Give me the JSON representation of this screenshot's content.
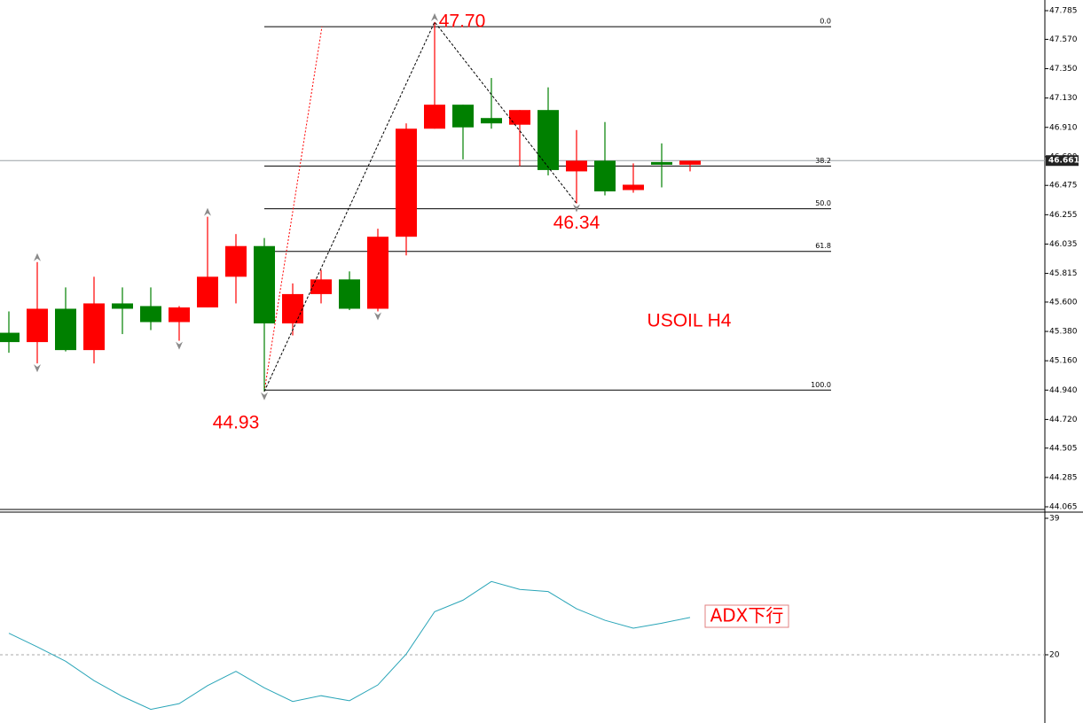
{
  "chart_data": [
    {
      "type": "candlestick",
      "title": "USOIL H4",
      "open": [
        45.37,
        45.3,
        45.55,
        45.24,
        45.59,
        45.57,
        45.45,
        45.56,
        45.79,
        46.02,
        45.44,
        45.66,
        45.77,
        45.55,
        46.09,
        46.9,
        47.08,
        46.98,
        46.93,
        47.04,
        46.58,
        46.66,
        46.44,
        46.65,
        46.63
      ],
      "high": [
        45.53,
        45.9,
        45.71,
        45.79,
        45.71,
        45.71,
        45.57,
        46.24,
        46.11,
        46.08,
        45.74,
        45.84,
        45.83,
        46.15,
        46.94,
        47.7,
        47.08,
        47.28,
        47.04,
        47.21,
        46.89,
        46.95,
        46.64,
        46.79,
        46.66
      ],
      "low": [
        45.22,
        45.14,
        45.23,
        45.14,
        45.36,
        45.39,
        45.31,
        45.56,
        45.59,
        44.93,
        45.35,
        45.59,
        45.54,
        45.53,
        45.95,
        46.9,
        46.67,
        46.9,
        46.62,
        46.55,
        46.34,
        46.4,
        46.42,
        46.46,
        46.58
      ],
      "close": [
        45.3,
        45.55,
        45.24,
        45.59,
        45.55,
        45.45,
        45.56,
        45.79,
        46.02,
        45.44,
        45.66,
        45.77,
        45.55,
        46.09,
        46.9,
        47.08,
        46.91,
        46.94,
        47.04,
        46.59,
        46.66,
        46.43,
        46.48,
        46.63,
        46.66
      ],
      "up_color": "#ff0000",
      "down_color": "#008000",
      "ylim": [
        44.045,
        47.865
      ],
      "yticks": [
        47.785,
        {
          "value": 47.57,
          "label": "47.570"
        },
        {
          "value": 47.35,
          "label": "47.350"
        },
        {
          "value": 47.13,
          "label": "47.130"
        },
        {
          "value": 46.91,
          "label": "46.910"
        },
        {
          "value": 46.69,
          "label": "46.690"
        },
        46.475,
        46.255,
        46.035,
        45.815,
        {
          "value": 45.6,
          "label": "45.600"
        },
        {
          "value": 45.38,
          "label": "45.380"
        },
        {
          "value": 45.16,
          "label": "45.160"
        },
        {
          "value": 44.94,
          "label": "44.940"
        },
        {
          "value": 44.72,
          "label": "44.720"
        },
        44.505,
        44.285,
        44.065
      ],
      "last_price": 46.661,
      "fibonacci": {
        "levels": [
          "0.0",
          "38.2",
          "50.0",
          "61.8",
          "100.0"
        ],
        "prices": [
          47.665,
          46.62,
          46.3,
          45.98,
          44.94
        ]
      },
      "annotations": [
        {
          "text": "47.70",
          "value": 47.7
        },
        {
          "text": "46.34",
          "value": 46.34
        },
        {
          "text": "44.93",
          "value": 44.93
        }
      ]
    },
    {
      "type": "line",
      "name": "ADX",
      "color": "#2aa5b8",
      "values": [
        23.0,
        21.1,
        19.1,
        16.4,
        14.2,
        12.4,
        13.2,
        15.7,
        17.7,
        15.4,
        13.5,
        14.3,
        13.6,
        15.8,
        20.1,
        26.0,
        27.6,
        30.2,
        29.1,
        28.8,
        26.4,
        24.8,
        23.7,
        24.4,
        25.2
      ],
      "ylim": [
        10.5,
        39.86
      ],
      "yticks": [
        39,
        20
      ],
      "levels": [
        20
      ],
      "annotation": "ADX下行"
    }
  ]
}
